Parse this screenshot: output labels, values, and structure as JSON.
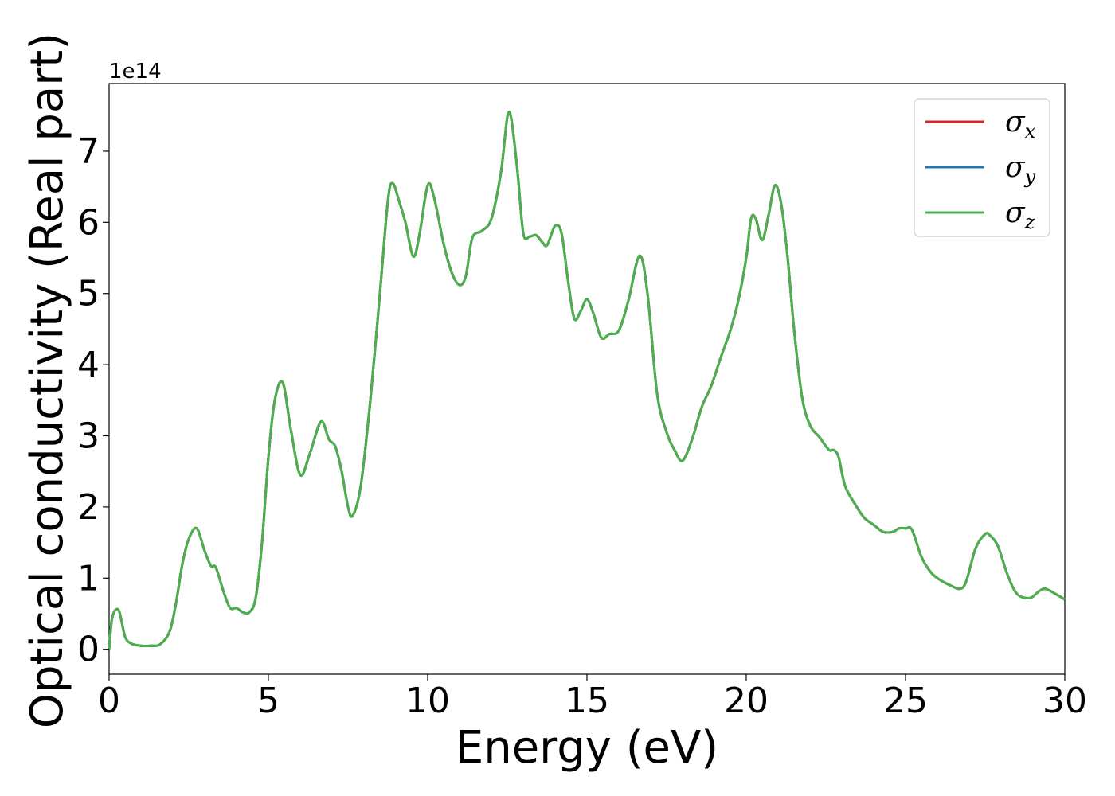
{
  "chart_data": {
    "type": "line",
    "title": "",
    "xlabel": "Energy (eV)",
    "ylabel": "Optical conductivity (Real part)",
    "y_offset_text": "1e14",
    "xlim": [
      0,
      30
    ],
    "ylim": [
      -0.35,
      7.95
    ],
    "y_scale_factor": "1e14",
    "x_ticks": [
      0,
      5,
      10,
      15,
      20,
      25,
      30
    ],
    "x_tick_labels": [
      "0",
      "5",
      "10",
      "15",
      "20",
      "25",
      "30"
    ],
    "y_ticks": [
      0,
      1,
      2,
      3,
      4,
      5,
      6,
      7
    ],
    "y_tick_labels": [
      "0",
      "1",
      "2",
      "3",
      "4",
      "5",
      "6",
      "7"
    ],
    "grid": false,
    "legend_position": "top-right",
    "colors": {
      "sigma_x": "#d62728",
      "sigma_y": "#1f77b4",
      "sigma_z": "#4daf4a"
    },
    "x": [
      0.0,
      0.1,
      0.3,
      0.5,
      0.7,
      1.0,
      1.3,
      1.6,
      1.9,
      2.1,
      2.3,
      2.5,
      2.75,
      3.0,
      3.2,
      3.35,
      3.6,
      3.8,
      4.0,
      4.2,
      4.4,
      4.6,
      4.8,
      5.0,
      5.2,
      5.45,
      5.7,
      6.0,
      6.3,
      6.65,
      6.9,
      7.1,
      7.3,
      7.5,
      7.65,
      7.9,
      8.2,
      8.5,
      8.75,
      8.9,
      9.1,
      9.3,
      9.55,
      9.75,
      10.0,
      10.2,
      10.5,
      10.75,
      11.0,
      11.2,
      11.4,
      11.7,
      12.0,
      12.3,
      12.55,
      12.8,
      13.0,
      13.2,
      13.4,
      13.6,
      13.75,
      14.0,
      14.2,
      14.4,
      14.6,
      14.8,
      15.0,
      15.2,
      15.45,
      15.7,
      16.0,
      16.3,
      16.65,
      16.9,
      17.2,
      17.5,
      17.75,
      18.0,
      18.3,
      18.6,
      18.9,
      19.2,
      19.5,
      19.75,
      20.0,
      20.15,
      20.3,
      20.5,
      20.7,
      20.9,
      21.1,
      21.3,
      21.5,
      21.75,
      22.0,
      22.3,
      22.6,
      22.75,
      22.9,
      23.1,
      23.4,
      23.7,
      24.0,
      24.3,
      24.6,
      24.8,
      25.0,
      25.2,
      25.5,
      25.8,
      26.1,
      26.4,
      26.7,
      26.9,
      27.2,
      27.5,
      27.65,
      27.9,
      28.2,
      28.5,
      28.9,
      29.2,
      29.4,
      29.7,
      30.0
    ],
    "series": [
      {
        "name": "σx",
        "values": [
          0.0,
          0.45,
          0.55,
          0.18,
          0.08,
          0.05,
          0.05,
          0.07,
          0.25,
          0.65,
          1.2,
          1.55,
          1.7,
          1.38,
          1.17,
          1.15,
          0.8,
          0.58,
          0.58,
          0.52,
          0.52,
          0.72,
          1.5,
          2.7,
          3.5,
          3.75,
          3.1,
          2.45,
          2.75,
          3.2,
          2.95,
          2.85,
          2.5,
          2.0,
          1.88,
          2.3,
          3.5,
          5.0,
          6.3,
          6.55,
          6.3,
          6.0,
          5.52,
          5.85,
          6.52,
          6.35,
          5.7,
          5.3,
          5.12,
          5.25,
          5.78,
          5.88,
          6.05,
          6.7,
          7.55,
          6.8,
          5.85,
          5.8,
          5.82,
          5.72,
          5.68,
          5.95,
          5.85,
          5.2,
          4.65,
          4.75,
          4.92,
          4.72,
          4.38,
          4.43,
          4.48,
          4.9,
          5.53,
          5.0,
          3.6,
          3.05,
          2.8,
          2.65,
          2.95,
          3.4,
          3.7,
          4.1,
          4.48,
          4.9,
          5.5,
          6.05,
          6.05,
          5.75,
          6.1,
          6.52,
          6.25,
          5.5,
          4.5,
          3.55,
          3.15,
          2.98,
          2.8,
          2.8,
          2.7,
          2.3,
          2.05,
          1.85,
          1.75,
          1.65,
          1.65,
          1.7,
          1.7,
          1.68,
          1.3,
          1.08,
          0.97,
          0.9,
          0.85,
          0.95,
          1.42,
          1.62,
          1.6,
          1.45,
          1.05,
          0.78,
          0.72,
          0.82,
          0.85,
          0.78,
          0.7
        ]
      },
      {
        "name": "σy",
        "values": [
          0.0,
          0.45,
          0.55,
          0.18,
          0.08,
          0.05,
          0.05,
          0.07,
          0.25,
          0.65,
          1.2,
          1.55,
          1.7,
          1.38,
          1.17,
          1.15,
          0.8,
          0.58,
          0.58,
          0.52,
          0.52,
          0.72,
          1.5,
          2.7,
          3.5,
          3.75,
          3.1,
          2.45,
          2.75,
          3.2,
          2.95,
          2.85,
          2.5,
          2.0,
          1.88,
          2.3,
          3.5,
          5.0,
          6.3,
          6.55,
          6.3,
          6.0,
          5.52,
          5.85,
          6.52,
          6.35,
          5.7,
          5.3,
          5.12,
          5.25,
          5.78,
          5.88,
          6.05,
          6.7,
          7.55,
          6.8,
          5.85,
          5.8,
          5.82,
          5.72,
          5.68,
          5.95,
          5.85,
          5.2,
          4.65,
          4.75,
          4.92,
          4.72,
          4.38,
          4.43,
          4.48,
          4.9,
          5.53,
          5.0,
          3.6,
          3.05,
          2.8,
          2.65,
          2.95,
          3.4,
          3.7,
          4.1,
          4.48,
          4.9,
          5.5,
          6.05,
          6.05,
          5.75,
          6.1,
          6.52,
          6.25,
          5.5,
          4.5,
          3.55,
          3.15,
          2.98,
          2.8,
          2.8,
          2.7,
          2.3,
          2.05,
          1.85,
          1.75,
          1.65,
          1.65,
          1.7,
          1.7,
          1.68,
          1.3,
          1.08,
          0.97,
          0.9,
          0.85,
          0.95,
          1.42,
          1.62,
          1.6,
          1.45,
          1.05,
          0.78,
          0.72,
          0.82,
          0.85,
          0.78,
          0.7
        ]
      },
      {
        "name": "σz",
        "values": [
          0.0,
          0.45,
          0.55,
          0.18,
          0.08,
          0.05,
          0.05,
          0.07,
          0.25,
          0.65,
          1.2,
          1.55,
          1.7,
          1.38,
          1.17,
          1.15,
          0.8,
          0.58,
          0.58,
          0.52,
          0.52,
          0.72,
          1.5,
          2.7,
          3.5,
          3.75,
          3.1,
          2.45,
          2.75,
          3.2,
          2.95,
          2.85,
          2.5,
          2.0,
          1.88,
          2.3,
          3.5,
          5.0,
          6.3,
          6.55,
          6.3,
          6.0,
          5.52,
          5.85,
          6.52,
          6.35,
          5.7,
          5.3,
          5.12,
          5.25,
          5.78,
          5.88,
          6.05,
          6.7,
          7.55,
          6.8,
          5.85,
          5.8,
          5.82,
          5.72,
          5.68,
          5.95,
          5.85,
          5.2,
          4.65,
          4.75,
          4.92,
          4.72,
          4.38,
          4.43,
          4.48,
          4.9,
          5.53,
          5.0,
          3.6,
          3.05,
          2.8,
          2.65,
          2.95,
          3.4,
          3.7,
          4.1,
          4.48,
          4.9,
          5.5,
          6.05,
          6.05,
          5.75,
          6.1,
          6.52,
          6.25,
          5.5,
          4.5,
          3.55,
          3.15,
          2.98,
          2.8,
          2.8,
          2.7,
          2.3,
          2.05,
          1.85,
          1.75,
          1.65,
          1.65,
          1.7,
          1.7,
          1.68,
          1.3,
          1.08,
          0.97,
          0.9,
          0.85,
          0.95,
          1.42,
          1.62,
          1.6,
          1.45,
          1.05,
          0.78,
          0.72,
          0.82,
          0.85,
          0.78,
          0.7
        ]
      }
    ],
    "legend": [
      {
        "base": "σ",
        "sub": "x",
        "color_key": "sigma_x"
      },
      {
        "base": "σ",
        "sub": "y",
        "color_key": "sigma_y"
      },
      {
        "base": "σ",
        "sub": "z",
        "color_key": "sigma_z"
      }
    ]
  }
}
